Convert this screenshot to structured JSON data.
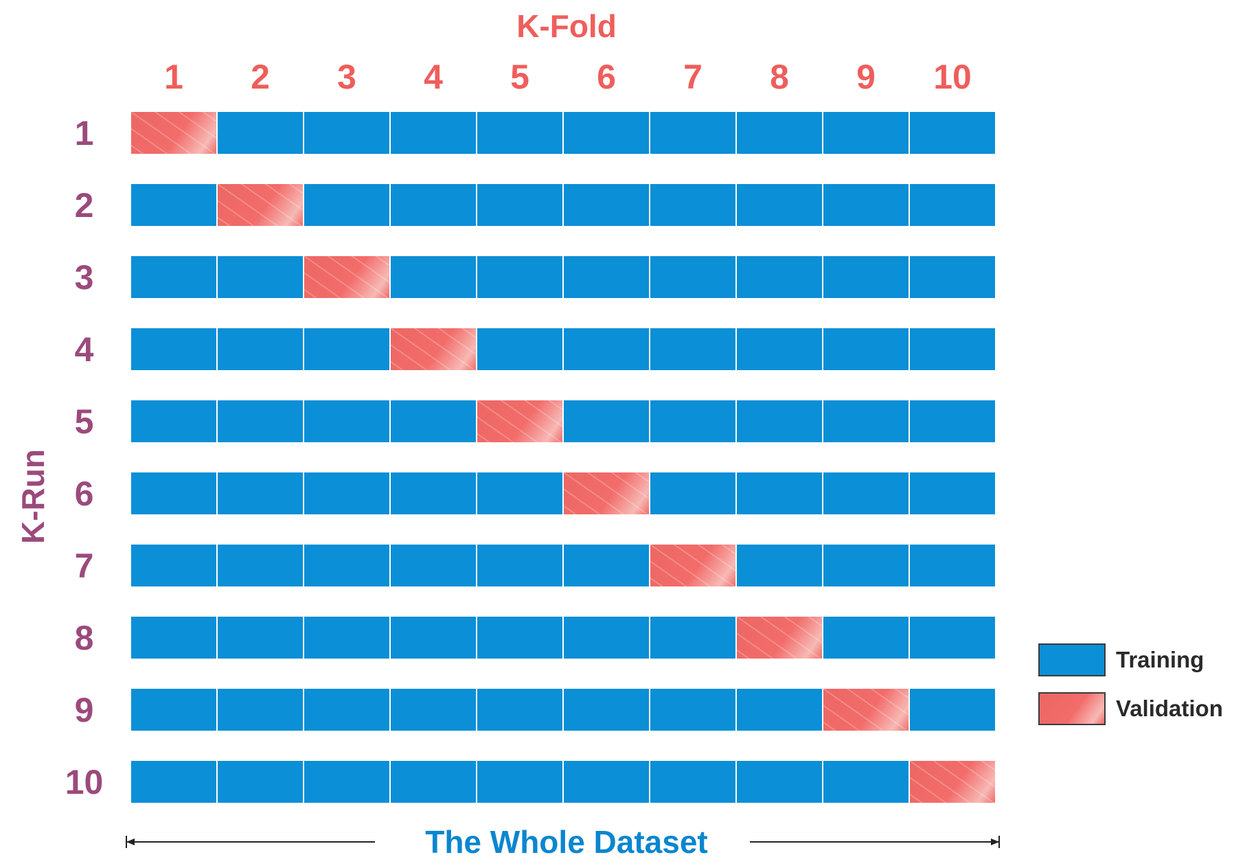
{
  "colors": {
    "fold": "#ef5e5b",
    "run": "#9b4a7c",
    "training": "#0b8fd6",
    "validation": "#ef6a67",
    "dataset": "#0a86cf",
    "axis_line": "#222222"
  },
  "fold_title": "K-Fold",
  "fold_labels": [
    "1",
    "2",
    "3",
    "4",
    "5",
    "6",
    "7",
    "8",
    "9",
    "10"
  ],
  "run_title": "K-Run",
  "run_labels": [
    "1",
    "2",
    "3",
    "4",
    "5",
    "6",
    "7",
    "8",
    "9",
    "10"
  ],
  "legend": {
    "training": "Training",
    "validation": "Validation"
  },
  "dataset_label": "The Whole Dataset",
  "grid": {
    "folds": 10,
    "validation_fold_per_run": [
      1,
      2,
      3,
      4,
      5,
      6,
      7,
      8,
      9,
      10
    ]
  }
}
